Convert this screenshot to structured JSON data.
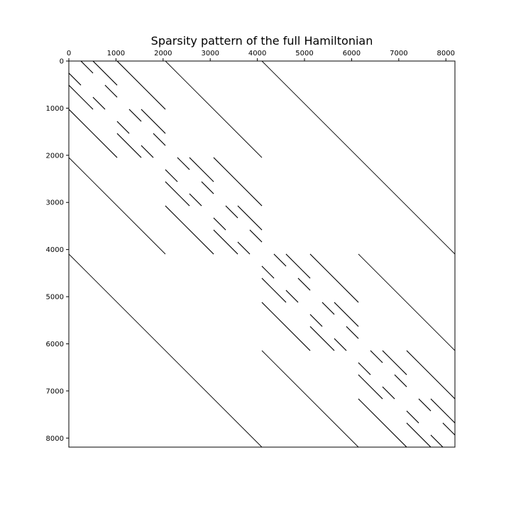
{
  "chart_data": {
    "type": "spy",
    "title": "Sparsity pattern of the full Hamiltonian",
    "xlabel": "",
    "ylabel": "",
    "xlim": [
      0,
      8192
    ],
    "ylim": [
      8192,
      0
    ],
    "x_axis_position": "top",
    "grid": false,
    "x_ticks": [
      0,
      1000,
      2000,
      3000,
      4000,
      5000,
      6000,
      7000,
      8000
    ],
    "y_ticks": [
      0,
      1000,
      2000,
      3000,
      4000,
      5000,
      6000,
      7000,
      8000
    ],
    "x_tick_labels": [
      "0",
      "1000",
      "2000",
      "3000",
      "4000",
      "5000",
      "6000",
      "7000",
      "8000"
    ],
    "y_tick_labels": [
      "0",
      "1000",
      "2000",
      "3000",
      "4000",
      "5000",
      "6000",
      "7000",
      "8000"
    ],
    "matrix_size": 8192,
    "nonzero_color": "#000000",
    "coupling_blocks": [
      4096,
      2048,
      1024,
      512,
      256
    ],
    "lattice_offsets": [
      1024,
      512,
      256
    ]
  }
}
